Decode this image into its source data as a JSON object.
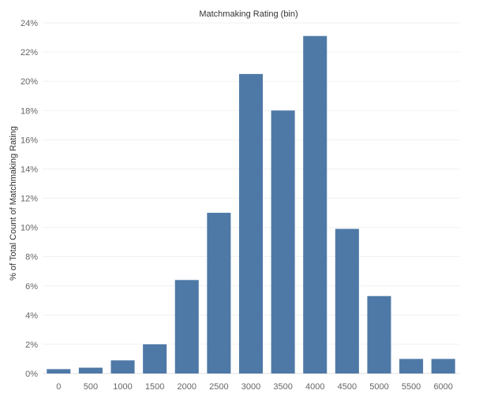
{
  "chart_data": {
    "type": "bar",
    "title": "",
    "xlabel": "Matchmaking Rating (bin)",
    "ylabel": "% of Total Count of Matchmaking Rating",
    "categories": [
      "0",
      "500",
      "1000",
      "1500",
      "2000",
      "2500",
      "3000",
      "3500",
      "4000",
      "4500",
      "5000",
      "5500",
      "6000"
    ],
    "values": [
      0.3,
      0.4,
      0.9,
      2.0,
      6.4,
      11.0,
      20.5,
      18.0,
      23.1,
      9.9,
      5.3,
      1.0,
      1.0
    ],
    "y_ticks": [
      "0%",
      "2%",
      "4%",
      "6%",
      "8%",
      "10%",
      "12%",
      "14%",
      "16%",
      "18%",
      "20%",
      "22%",
      "24%"
    ],
    "ylim": [
      0,
      24
    ],
    "grid": true,
    "bar_color": "#4e79a7"
  }
}
